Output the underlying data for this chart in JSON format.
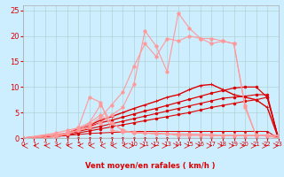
{
  "xlabel": "Vent moyen/en rafales ( km/h )",
  "bg_color": "#cceeff",
  "grid_color": "#aacccc",
  "xmin": 0,
  "xmax": 23,
  "ymin": 0,
  "ymax": 26,
  "yticks": [
    0,
    5,
    10,
    15,
    20,
    25
  ],
  "xticks": [
    0,
    1,
    2,
    3,
    4,
    5,
    6,
    7,
    8,
    9,
    10,
    11,
    12,
    13,
    14,
    15,
    16,
    17,
    18,
    19,
    20,
    21,
    22,
    23
  ],
  "color_light": "#ff9999",
  "color_dark": "#dd0000",
  "curves": [
    {
      "x": [
        0,
        3,
        4,
        5,
        6,
        7,
        8,
        9,
        10,
        11,
        12,
        13,
        14,
        15,
        16,
        17,
        18,
        19,
        20,
        21,
        22,
        23
      ],
      "y": [
        0,
        0,
        0,
        0,
        0,
        0,
        0,
        0,
        0,
        0,
        0,
        0,
        0,
        0,
        0,
        0,
        0,
        0,
        0,
        0,
        0,
        0
      ],
      "color": "#dd0000",
      "lw": 0.7,
      "ms": 1.5,
      "marker": "o"
    },
    {
      "x": [
        0,
        3,
        4,
        5,
        6,
        7,
        8,
        9,
        10,
        11,
        12,
        13,
        14,
        15,
        16,
        17,
        18,
        19,
        20,
        21,
        22,
        23
      ],
      "y": [
        0,
        0.3,
        0.5,
        0.7,
        0.9,
        1.0,
        1.1,
        1.2,
        1.3,
        1.3,
        1.3,
        1.3,
        1.3,
        1.3,
        1.3,
        1.3,
        1.3,
        1.3,
        1.3,
        1.3,
        1.3,
        0
      ],
      "color": "#dd0000",
      "lw": 0.7,
      "ms": 1.5,
      "marker": "o"
    },
    {
      "x": [
        0,
        3,
        4,
        5,
        6,
        7,
        8,
        9,
        10,
        11,
        12,
        13,
        14,
        15,
        16,
        17,
        18,
        19,
        20,
        21,
        22,
        23
      ],
      "y": [
        0,
        0.3,
        0.6,
        1.0,
        1.4,
        1.8,
        2.2,
        2.6,
        3.0,
        3.4,
        3.8,
        4.2,
        4.6,
        5.0,
        5.5,
        6.0,
        6.4,
        6.8,
        7.2,
        7.5,
        8.0,
        0
      ],
      "color": "#dd0000",
      "lw": 0.8,
      "ms": 2.0,
      "marker": "o"
    },
    {
      "x": [
        0,
        3,
        4,
        5,
        6,
        7,
        8,
        9,
        10,
        11,
        12,
        13,
        14,
        15,
        16,
        17,
        18,
        19,
        20,
        21,
        22,
        23
      ],
      "y": [
        0,
        0.4,
        0.8,
        1.3,
        1.8,
        2.3,
        2.8,
        3.3,
        3.8,
        4.3,
        4.8,
        5.3,
        5.8,
        6.3,
        6.8,
        7.3,
        7.8,
        8.0,
        8.2,
        8.5,
        8.5,
        0
      ],
      "color": "#dd0000",
      "lw": 0.8,
      "ms": 2.0,
      "marker": "o"
    },
    {
      "x": [
        0,
        3,
        4,
        5,
        6,
        7,
        8,
        9,
        10,
        11,
        12,
        13,
        14,
        15,
        16,
        17,
        18,
        19,
        20,
        21,
        22,
        23
      ],
      "y": [
        0,
        0.5,
        1.0,
        1.7,
        2.3,
        3.0,
        3.5,
        4.1,
        4.7,
        5.3,
        5.8,
        6.4,
        7.0,
        7.6,
        8.2,
        8.8,
        9.3,
        9.8,
        10.0,
        10.0,
        8.0,
        0
      ],
      "color": "#dd0000",
      "lw": 0.9,
      "ms": 2.0,
      "marker": "o"
    },
    {
      "x": [
        0,
        3,
        4,
        5,
        6,
        7,
        8,
        9,
        10,
        11,
        12,
        13,
        14,
        15,
        16,
        17,
        18,
        19,
        20,
        21,
        22,
        23
      ],
      "y": [
        0,
        0.5,
        1.0,
        1.8,
        2.5,
        3.5,
        4.2,
        5.0,
        5.8,
        6.5,
        7.2,
        8.0,
        8.5,
        9.5,
        10.3,
        10.5,
        9.5,
        8.5,
        8.0,
        7.5,
        6.0,
        0
      ],
      "color": "#dd0000",
      "lw": 1.0,
      "ms": 2.5,
      "marker": "+"
    },
    {
      "x": [
        0,
        3,
        4,
        5,
        6,
        7,
        8,
        9,
        10,
        11,
        12,
        13,
        14,
        15,
        16,
        17,
        18,
        19,
        20,
        21,
        22,
        23
      ],
      "y": [
        0,
        1.0,
        1.5,
        2.0,
        8.0,
        7.0,
        1.5,
        1.2,
        1.2,
        1.0,
        1.0,
        0.8,
        0.5,
        0.5,
        0.5,
        0.5,
        0.5,
        0.5,
        0.5,
        0.5,
        0.5,
        0
      ],
      "color": "#ff9999",
      "lw": 0.8,
      "ms": 2.5,
      "marker": "o"
    },
    {
      "x": [
        0,
        3,
        4,
        5,
        6,
        7,
        8,
        9,
        10,
        11,
        12,
        13,
        14,
        15,
        16,
        17,
        18,
        19,
        20,
        21,
        22,
        23
      ],
      "y": [
        0,
        0.5,
        1.0,
        1.5,
        3.0,
        4.5,
        3.0,
        1.5,
        1.0,
        1.0,
        0.8,
        0.8,
        0.8,
        0.7,
        0.7,
        0.5,
        0.5,
        0.5,
        0.5,
        0.5,
        0.5,
        0
      ],
      "color": "#ff9999",
      "lw": 0.8,
      "ms": 2.5,
      "marker": "o"
    },
    {
      "x": [
        0,
        4,
        5,
        6,
        7,
        8,
        9,
        10,
        11,
        12,
        13,
        14,
        15,
        16,
        17,
        18,
        19,
        20,
        21,
        22,
        23
      ],
      "y": [
        0,
        1.0,
        2.0,
        3.0,
        6.5,
        3.0,
        1.5,
        1.0,
        1.0,
        0.8,
        0.8,
        0.8,
        0.8,
        0.7,
        0.7,
        0.5,
        0.5,
        0.5,
        0.5,
        0.5,
        0
      ],
      "color": "#ff9999",
      "lw": 0.8,
      "ms": 2.5,
      "marker": "o"
    },
    {
      "x": [
        0,
        1,
        2,
        3,
        4,
        5,
        6,
        7,
        8,
        9,
        10,
        11,
        12,
        13,
        14,
        15,
        16,
        17,
        18,
        19,
        20,
        21,
        22,
        23
      ],
      "y": [
        0,
        0,
        0,
        0.3,
        0.8,
        1.5,
        2.0,
        3.0,
        4.5,
        6.0,
        10.5,
        21.0,
        18.0,
        13.0,
        24.5,
        21.5,
        19.5,
        19.5,
        19.0,
        18.5,
        6.5,
        0.5,
        0.5,
        0.5
      ],
      "color": "#ff9999",
      "lw": 0.8,
      "ms": 2.5,
      "marker": "o"
    },
    {
      "x": [
        0,
        1,
        2,
        3,
        4,
        5,
        6,
        7,
        8,
        9,
        10,
        11,
        12,
        13,
        14,
        15,
        16,
        17,
        18,
        19,
        20,
        21,
        22,
        23
      ],
      "y": [
        0,
        0,
        0,
        0.3,
        0.8,
        1.5,
        2.5,
        4.0,
        6.5,
        9.0,
        14.0,
        18.5,
        16.0,
        19.5,
        19.0,
        20.0,
        19.5,
        18.5,
        19.0,
        18.5,
        6.0,
        0.5,
        0.5,
        0.5
      ],
      "color": "#ff9999",
      "lw": 0.8,
      "ms": 2.5,
      "marker": "o"
    }
  ],
  "arrows_x": [
    0,
    1,
    2,
    3,
    4,
    5,
    6,
    7,
    8,
    9,
    10,
    11,
    12,
    13,
    14,
    15,
    16,
    17,
    18,
    19,
    20,
    21,
    22,
    23
  ],
  "arrows_dir": [
    -1,
    -1,
    -1,
    -0.7,
    -0.7,
    -0.8,
    -1,
    -1,
    -0.8,
    -0.5,
    0.3,
    0.5,
    0.7,
    0.5,
    0.3,
    0.5,
    0.7,
    1,
    1,
    1,
    1,
    1,
    1,
    1
  ]
}
